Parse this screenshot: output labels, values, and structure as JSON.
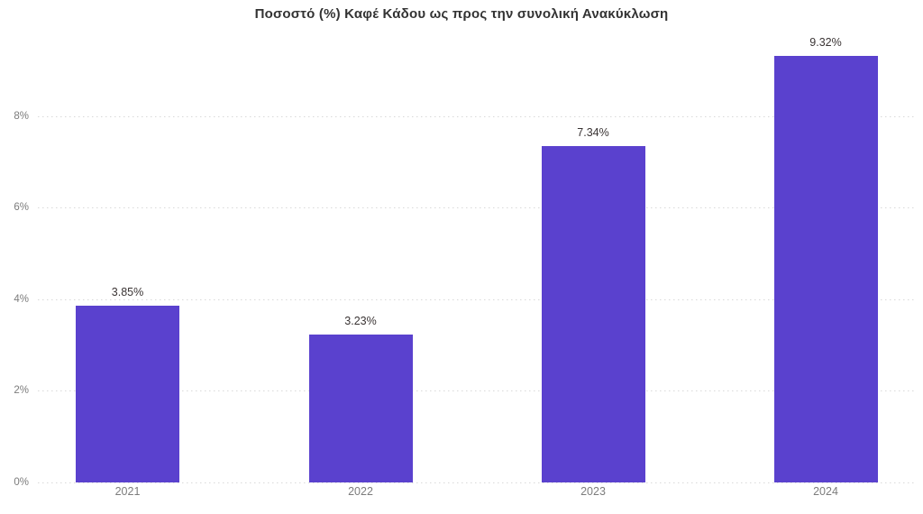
{
  "chart_data": {
    "type": "bar",
    "title": "Ποσοστό (%) Καφέ Κάδου ως προς την συνολική Ανακύκλωση",
    "categories": [
      "2021",
      "2022",
      "2023",
      "2024"
    ],
    "values": [
      3.85,
      3.23,
      7.34,
      9.32
    ],
    "value_labels": [
      "3.85%",
      "3.23%",
      "7.34%",
      "9.32%"
    ],
    "xlabel": "",
    "ylabel": "",
    "y_ticks": [
      {
        "value": 0,
        "label": "0%"
      },
      {
        "value": 2,
        "label": "2%"
      },
      {
        "value": 4,
        "label": "4%"
      },
      {
        "value": 6,
        "label": "6%"
      },
      {
        "value": 8,
        "label": "8%"
      }
    ],
    "ylim": [
      0,
      9.45
    ],
    "grid": "horizontal-dotted",
    "legend_position": "none",
    "colors": {
      "bar": "#5a41ce",
      "title_text": "#333333",
      "value_label_text": "#3a3434",
      "axis_label_text": "#7c7c7c",
      "gridline": "#d9d9d9",
      "background": "#ffffff"
    }
  }
}
